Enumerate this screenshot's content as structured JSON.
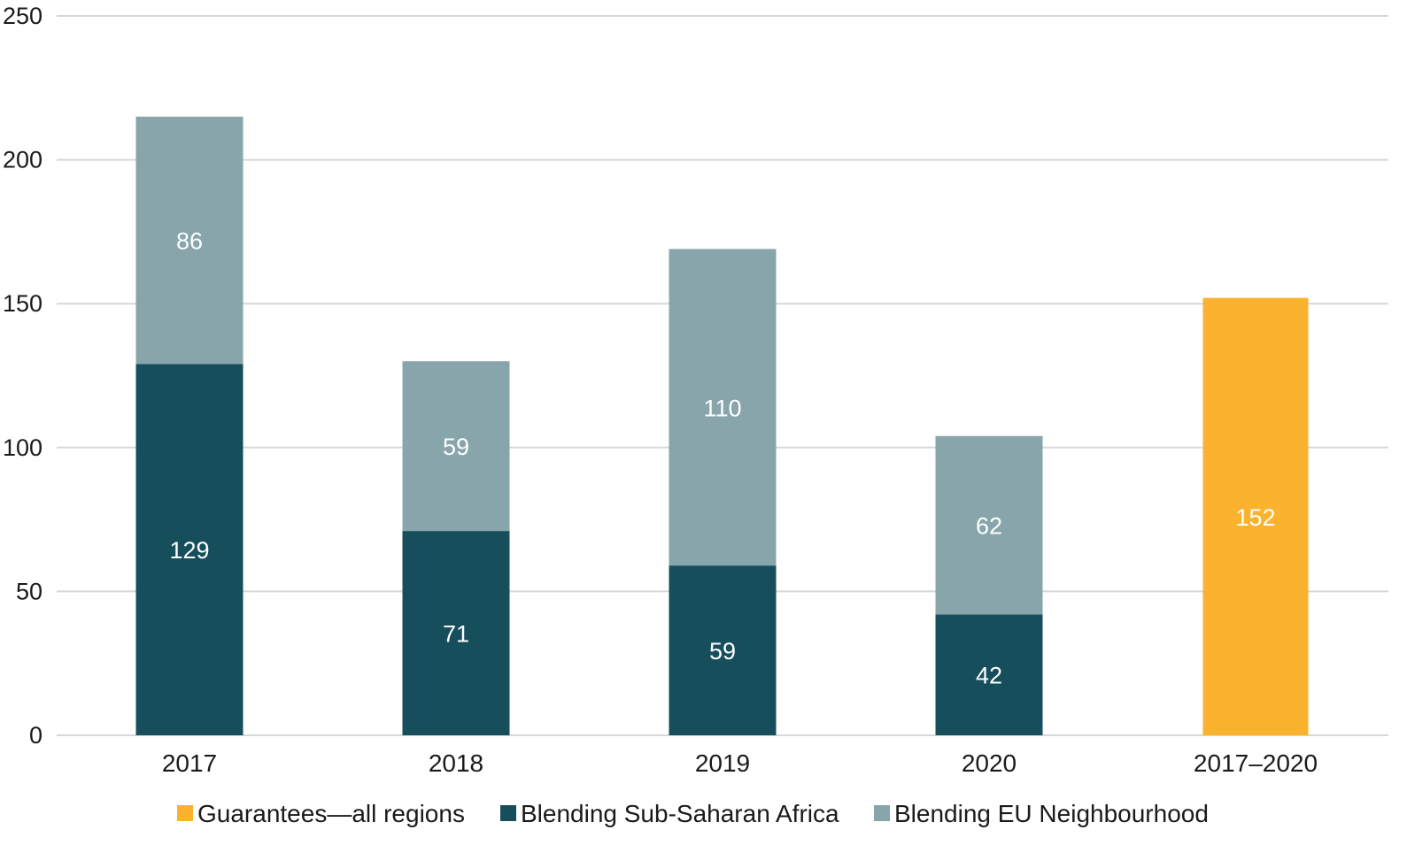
{
  "chart_data": {
    "type": "bar",
    "stacked": true,
    "title": "",
    "xlabel": "",
    "ylabel": "",
    "ylim": [
      0,
      250
    ],
    "yticks": [
      0,
      50,
      100,
      150,
      200,
      250
    ],
    "grid": true,
    "legend_position": "bottom",
    "categories": [
      "2017",
      "2018",
      "2019",
      "2020",
      "2017–2020"
    ],
    "series": [
      {
        "name": "Blending Sub-Saharan Africa",
        "color": "#174e5c",
        "values": [
          129,
          71,
          59,
          42,
          null
        ]
      },
      {
        "name": "Blending EU Neighbourhood",
        "color": "#87a5ab",
        "values": [
          86,
          59,
          110,
          62,
          null
        ]
      },
      {
        "name": "Guarantees—all regions",
        "color": "#fbb22f",
        "values": [
          null,
          null,
          null,
          null,
          152
        ]
      }
    ],
    "legend_order": [
      "Guarantees—all regions",
      "Blending Sub-Saharan Africa",
      "Blending EU Neighbourhood"
    ]
  }
}
